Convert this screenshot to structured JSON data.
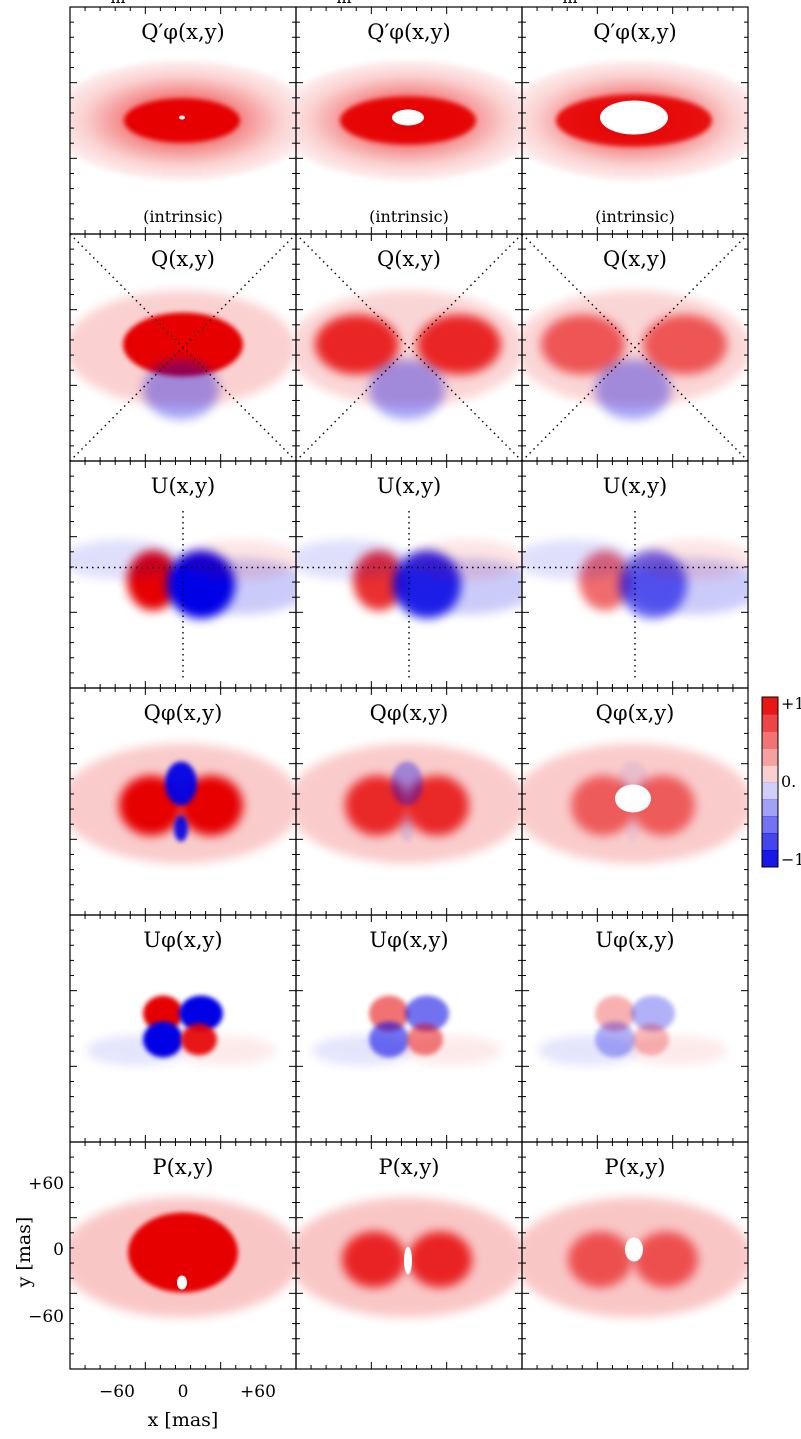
{
  "figure": {
    "row_titles": [
      "Q′φ(x,y)",
      "Q(x,y)",
      "U(x,y)",
      "Qφ(x,y)",
      "Uφ(x,y)",
      "P(x,y)"
    ],
    "intrinsic_label": "(intrinsic)",
    "x_axis_label": "x [mas]",
    "y_axis_label": "y [mas]",
    "x_ticks": [
      "−60",
      "0",
      "+60"
    ],
    "y_ticks": [
      "+60",
      "0",
      "−60"
    ],
    "colorbar_labels": [
      "+1",
      "0.",
      "−1"
    ],
    "top_edge_fragments": [
      "m",
      "m",
      "m"
    ]
  },
  "colors": {
    "pos_max": "#e60000",
    "neg_max": "#0000e6",
    "zero": "#ffffff"
  },
  "chart_data": {
    "type": "heatmap",
    "layout": "6 rows x 3 columns of polarization maps",
    "x_axis": {
      "label": "x [mas]",
      "ticks": [
        -60,
        0,
        60
      ]
    },
    "y_axis": {
      "label": "y [mas]",
      "ticks": [
        60,
        0,
        -60
      ]
    },
    "colorbar": {
      "range": [
        -1,
        1
      ],
      "levels": 10,
      "ticks": [
        "+1",
        "0.",
        "−1"
      ]
    },
    "columns": [
      {
        "hole_fraction": 0.12
      },
      {
        "hole_fraction": 0.35
      },
      {
        "hole_fraction": 0.62
      }
    ],
    "rows": [
      {
        "map": "Q′φ",
        "note": "(intrinsic)"
      },
      {
        "map": "Q",
        "overlay": "diagonal dotted lines"
      },
      {
        "map": "U",
        "overlay": "vertical and horizontal dotted lines"
      },
      {
        "map": "Qφ"
      },
      {
        "map": "Uφ"
      },
      {
        "map": "P"
      }
    ]
  }
}
